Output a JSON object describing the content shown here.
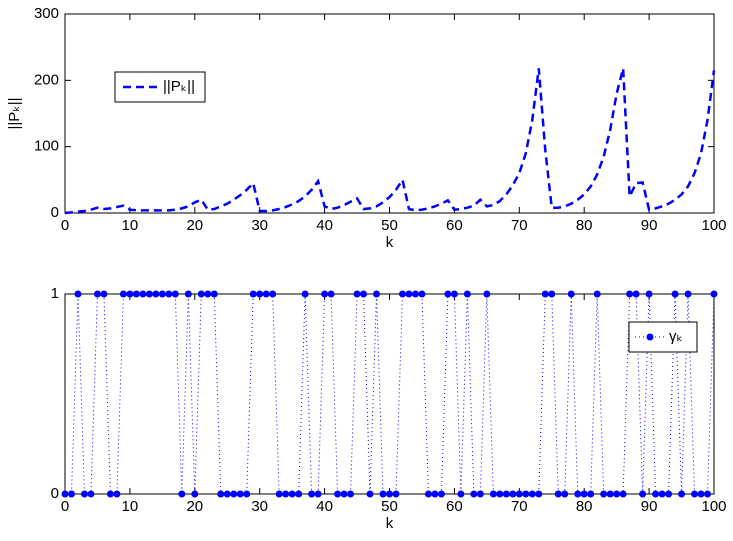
{
  "chart_data": [
    {
      "type": "line",
      "xlabel": "k",
      "ylabel": "||Pₖ||",
      "x": [
        0,
        1,
        2,
        3,
        4,
        5,
        6,
        7,
        8,
        9,
        10,
        11,
        12,
        13,
        14,
        15,
        16,
        17,
        18,
        19,
        20,
        21,
        22,
        23,
        24,
        25,
        26,
        27,
        28,
        29,
        30,
        31,
        32,
        33,
        34,
        35,
        36,
        37,
        38,
        39,
        40,
        41,
        42,
        43,
        44,
        45,
        46,
        47,
        48,
        49,
        50,
        51,
        52,
        53,
        54,
        55,
        56,
        57,
        58,
        59,
        60,
        61,
        62,
        63,
        64,
        65,
        66,
        67,
        68,
        69,
        70,
        71,
        72,
        73,
        74,
        75,
        76,
        77,
        78,
        79,
        80,
        81,
        82,
        83,
        84,
        85,
        86,
        87,
        88,
        89,
        90,
        91,
        92,
        93,
        94,
        95,
        96,
        97,
        98,
        99,
        100
      ],
      "series": [
        {
          "name": "||Pₖ||",
          "color": "#0000ff",
          "line_style": "dashed",
          "markers": false,
          "values": [
            0,
            1,
            2,
            3,
            5,
            8,
            6,
            7,
            9,
            11,
            5,
            4,
            4,
            4,
            4,
            4,
            4,
            5,
            7,
            10,
            16,
            20,
            5,
            6,
            10,
            14,
            20,
            27,
            35,
            45,
            3,
            3,
            4,
            6,
            9,
            13,
            18,
            25,
            35,
            48,
            10,
            6,
            8,
            12,
            17,
            22,
            6,
            7,
            10,
            16,
            24,
            35,
            50,
            6,
            4,
            5,
            7,
            10,
            14,
            19,
            5,
            6,
            8,
            11,
            20,
            10,
            12,
            18,
            28,
            42,
            60,
            90,
            140,
            218,
            95,
            8,
            8,
            10,
            14,
            20,
            28,
            40,
            58,
            85,
            125,
            180,
            218,
            25,
            45,
            46,
            5,
            7,
            10,
            14,
            20,
            28,
            40,
            60,
            90,
            140,
            215
          ]
        }
      ],
      "xlim": [
        0,
        100
      ],
      "xticks": [
        0,
        10,
        20,
        30,
        40,
        50,
        60,
        70,
        80,
        90,
        100
      ],
      "ylim": [
        0,
        300
      ],
      "yticks": [
        0,
        100,
        200,
        300
      ],
      "legend": "upper left"
    },
    {
      "type": "line",
      "xlabel": "k",
      "x": [
        0,
        1,
        2,
        3,
        4,
        5,
        6,
        7,
        8,
        9,
        10,
        11,
        12,
        13,
        14,
        15,
        16,
        17,
        18,
        19,
        20,
        21,
        22,
        23,
        24,
        25,
        26,
        27,
        28,
        29,
        30,
        31,
        32,
        33,
        34,
        35,
        36,
        37,
        38,
        39,
        40,
        41,
        42,
        43,
        44,
        45,
        46,
        47,
        48,
        49,
        50,
        51,
        52,
        53,
        54,
        55,
        56,
        57,
        58,
        59,
        60,
        61,
        62,
        63,
        64,
        65,
        66,
        67,
        68,
        69,
        70,
        71,
        72,
        73,
        74,
        75,
        76,
        77,
        78,
        79,
        80,
        81,
        82,
        83,
        84,
        85,
        86,
        87,
        88,
        89,
        90,
        91,
        92,
        93,
        94,
        95,
        96,
        97,
        98,
        99,
        100
      ],
      "series": [
        {
          "name": "γₖ",
          "color": "#0000ff",
          "line_style": "dotted",
          "markers": true,
          "values": [
            0,
            0,
            1,
            0,
            0,
            1,
            1,
            0,
            0,
            1,
            1,
            1,
            1,
            1,
            1,
            1,
            1,
            1,
            0,
            1,
            0,
            1,
            1,
            1,
            0,
            0,
            0,
            0,
            0,
            1,
            1,
            1,
            1,
            0,
            0,
            0,
            0,
            1,
            0,
            0,
            1,
            1,
            0,
            0,
            0,
            1,
            1,
            0,
            1,
            0,
            0,
            0,
            1,
            1,
            1,
            1,
            0,
            0,
            0,
            1,
            1,
            0,
            1,
            0,
            0,
            1,
            0,
            0,
            0,
            0,
            0,
            0,
            0,
            0,
            1,
            1,
            0,
            0,
            1,
            0,
            0,
            0,
            1,
            0,
            0,
            0,
            0,
            1,
            1,
            0,
            1,
            0,
            0,
            0,
            1,
            0,
            1,
            0,
            0,
            0,
            1
          ]
        }
      ],
      "xlim": [
        0,
        100
      ],
      "xticks": [
        0,
        10,
        20,
        30,
        40,
        50,
        60,
        70,
        80,
        90,
        100
      ],
      "ylim": [
        0,
        1
      ],
      "yticks": [
        0,
        1
      ],
      "legend": "upper right"
    }
  ]
}
